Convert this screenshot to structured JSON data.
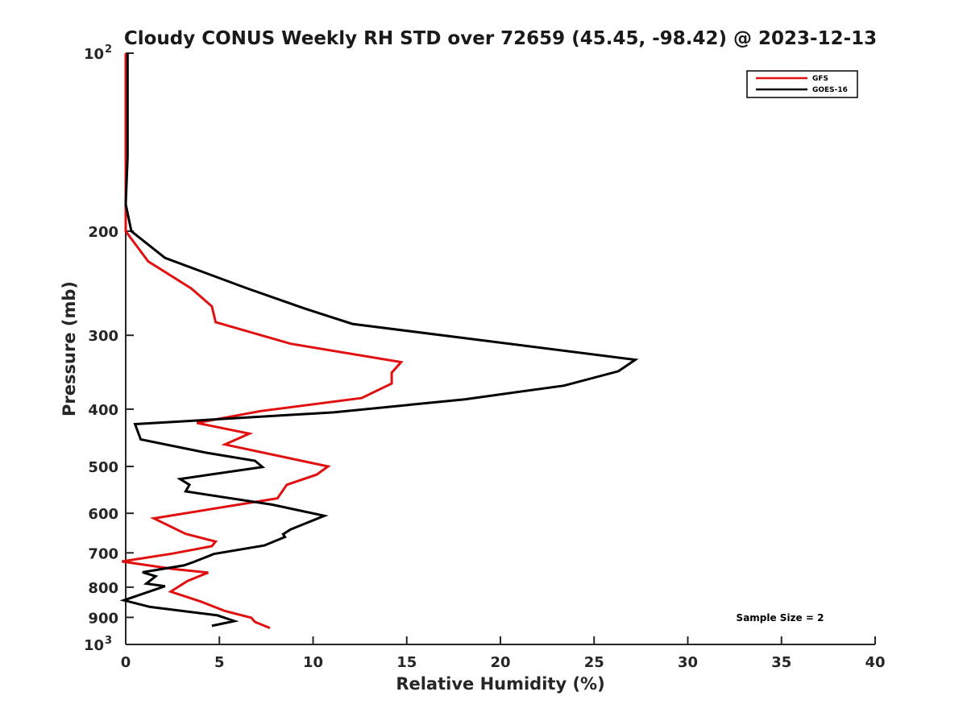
{
  "chart_data": {
    "type": "line",
    "title": "Cloudy CONUS Weekly RH STD over 72659 (45.45, -98.42) @ 2023-12-13",
    "xlabel": "Relative Humidity (%)",
    "ylabel": "Pressure (mb)",
    "xlim": [
      0,
      40
    ],
    "ylim": [
      100,
      1000
    ],
    "y_scale": "log",
    "y_inverted": true,
    "grid": false,
    "legend_position": "top-right",
    "x_ticks": [
      "0",
      "5",
      "10",
      "15",
      "20",
      "25",
      "30",
      "35",
      "40"
    ],
    "y_ticks": [
      {
        "value": 100,
        "base": "10",
        "exp": "2"
      },
      {
        "value": 200,
        "label": "200"
      },
      {
        "value": 300,
        "label": "300"
      },
      {
        "value": 400,
        "label": "400"
      },
      {
        "value": 500,
        "label": "500"
      },
      {
        "value": 600,
        "label": "600"
      },
      {
        "value": 700,
        "label": "700"
      },
      {
        "value": 800,
        "label": "800"
      },
      {
        "value": 900,
        "label": "900"
      },
      {
        "value": 1000,
        "base": "10",
        "exp": "3"
      }
    ],
    "annotation": "Sample Size = 2",
    "series": [
      {
        "name": "GFS",
        "color": "#e01010",
        "points": [
          [
            0.0,
            100
          ],
          [
            0.0,
            150
          ],
          [
            0.0,
            180
          ],
          [
            0.0,
            200
          ],
          [
            1.2,
            225
          ],
          [
            3.5,
            250
          ],
          [
            4.6,
            268
          ],
          [
            4.8,
            285
          ],
          [
            8.8,
            310
          ],
          [
            14.7,
            333
          ],
          [
            14.2,
            347
          ],
          [
            14.2,
            362
          ],
          [
            12.6,
            383
          ],
          [
            7.2,
            403
          ],
          [
            3.8,
            422
          ],
          [
            6.6,
            440
          ],
          [
            5.3,
            459
          ],
          [
            10.8,
            500
          ],
          [
            10.2,
            516
          ],
          [
            8.6,
            537
          ],
          [
            8.1,
            566
          ],
          [
            1.5,
            612
          ],
          [
            3.2,
            650
          ],
          [
            4.8,
            670
          ],
          [
            4.6,
            682
          ],
          [
            2.5,
            702
          ],
          [
            -0.2,
            724
          ],
          [
            2.5,
            745
          ],
          [
            4.4,
            756
          ],
          [
            3.3,
            781
          ],
          [
            2.4,
            814
          ],
          [
            4.0,
            846
          ],
          [
            5.3,
            878
          ],
          [
            6.7,
            901
          ],
          [
            6.9,
            916
          ],
          [
            7.7,
            938
          ]
        ]
      },
      {
        "name": "GOES-16",
        "color": "#000000",
        "points": [
          [
            0.1,
            100
          ],
          [
            0.1,
            150
          ],
          [
            0.0,
            180
          ],
          [
            0.3,
            200
          ],
          [
            2.1,
            222
          ],
          [
            6.5,
            250
          ],
          [
            9.5,
            270
          ],
          [
            12.1,
            287
          ],
          [
            27.2,
            330
          ],
          [
            26.3,
            345
          ],
          [
            23.4,
            365
          ],
          [
            18.1,
            385
          ],
          [
            11.1,
            405
          ],
          [
            0.5,
            424
          ],
          [
            0.8,
            450
          ],
          [
            4.3,
            474
          ],
          [
            6.9,
            489
          ],
          [
            7.3,
            501
          ],
          [
            2.9,
            525
          ],
          [
            3.4,
            537
          ],
          [
            3.2,
            551
          ],
          [
            7.8,
            580
          ],
          [
            10.6,
            606
          ],
          [
            8.8,
            639
          ],
          [
            8.4,
            651
          ],
          [
            8.5,
            658
          ],
          [
            7.4,
            680
          ],
          [
            4.7,
            703
          ],
          [
            3.6,
            726
          ],
          [
            3.1,
            735
          ],
          [
            0.9,
            755
          ],
          [
            1.6,
            767
          ],
          [
            1.1,
            789
          ],
          [
            2.1,
            797
          ],
          [
            -0.1,
            842
          ],
          [
            1.3,
            864
          ],
          [
            4.9,
            893
          ],
          [
            5.8,
            913
          ],
          [
            4.6,
            930
          ]
        ]
      }
    ]
  }
}
